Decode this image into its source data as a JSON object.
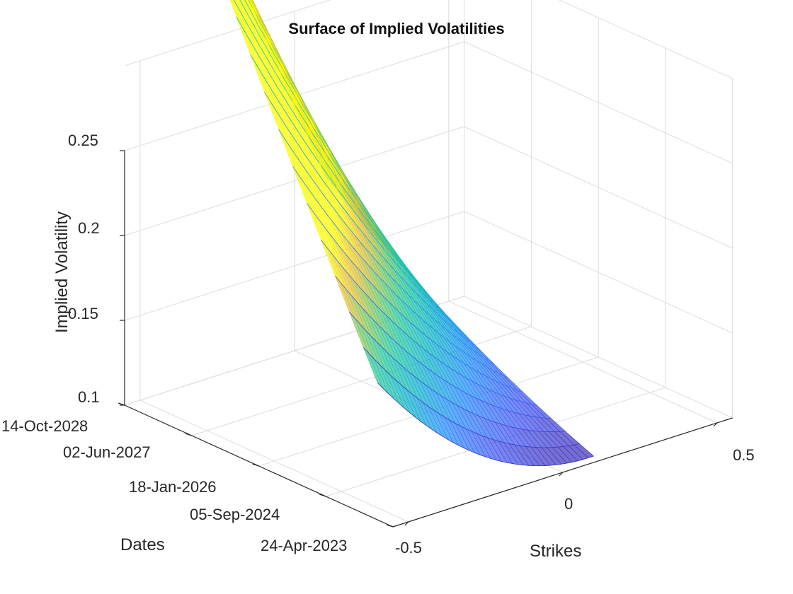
{
  "chart_data": {
    "type": "surface3d",
    "title": "Surface of Implied Volatilities",
    "xlabel": "Strikes",
    "ylabel": "Dates",
    "zlabel": "Implied Volatility",
    "x_ticks": [
      "-0.5",
      "0",
      "0.5"
    ],
    "x_tick_values": [
      -0.5,
      0,
      0.5
    ],
    "y_ticks": [
      "24-Apr-2023",
      "05-Sep-2024",
      "18-Jan-2026",
      "02-Jun-2027",
      "14-Oct-2028"
    ],
    "z_ticks": [
      "0.1",
      "0.15",
      "0.2",
      "0.25"
    ],
    "z_tick_values": [
      0.1,
      0.15,
      0.2,
      0.25
    ],
    "xlim": [
      -0.55,
      0.55
    ],
    "zlim": [
      0.1,
      0.25
    ],
    "strike_range": [
      -0.6,
      0.1
    ],
    "maturities": 20,
    "vol_at_short_maturity": {
      "strike_neg_0_6": 0.16,
      "strike_0": 0.105,
      "strike_0_1": 0.11
    },
    "vol_at_long_maturity": {
      "strike_neg_0_6": 0.13,
      "strike_0": 0.215,
      "strike_0_1": 0.245
    },
    "colormap": "parula",
    "colors": {
      "low": "#3e26a8",
      "mid": "#12b2cd",
      "high": "#f9fb0e"
    }
  }
}
